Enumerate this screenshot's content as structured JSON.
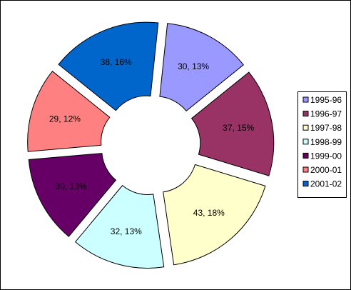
{
  "chart_data": {
    "type": "pie",
    "style": "exploded doughnut",
    "title": "",
    "legend_position": "right",
    "categories": [
      "1995-96",
      "1996-97",
      "1997-98",
      "1998-99",
      "1999-00",
      "2000-01",
      "2001-02"
    ],
    "values": [
      30,
      37,
      43,
      32,
      30,
      29,
      38
    ],
    "percent_labels": [
      "13%",
      "15%",
      "18%",
      "13%",
      "13%",
      "12%",
      "16%"
    ],
    "data_labels": [
      "30, 13%",
      "37, 15%",
      "43, 18%",
      "32, 13%",
      "30, 13%",
      "29, 12%",
      "38, 16%"
    ],
    "colors": [
      "#9999FF",
      "#993366",
      "#FFFFCC",
      "#CCFFFF",
      "#660066",
      "#FF8080",
      "#0066CC"
    ]
  }
}
